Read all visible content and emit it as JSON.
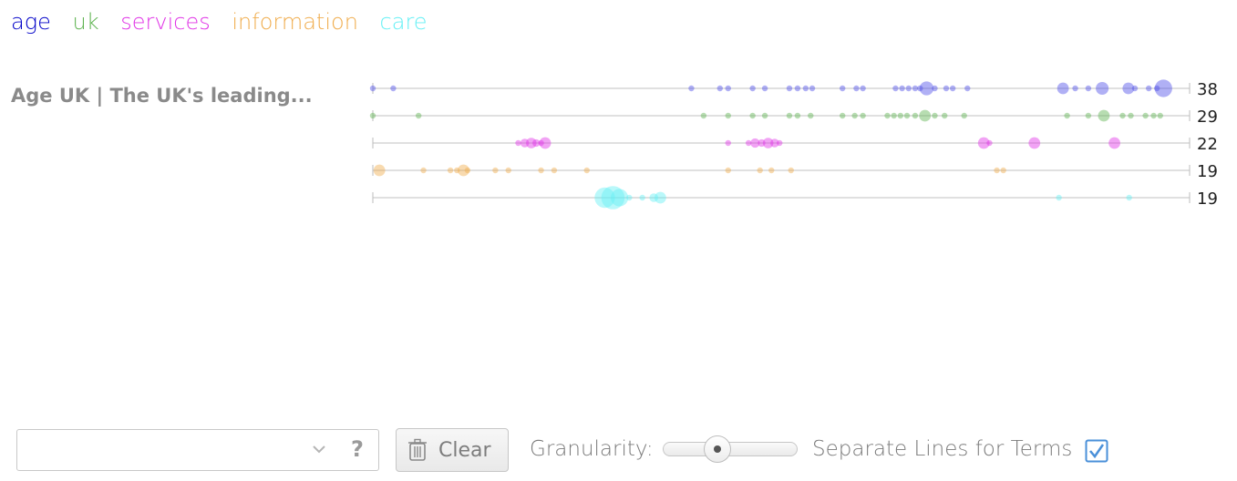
{
  "legend": {
    "terms": [
      {
        "label": "age",
        "color": "#0000c8"
      },
      {
        "label": "uk",
        "color": "#5fb451"
      },
      {
        "label": "services",
        "color": "#e033e6"
      },
      {
        "label": "information",
        "color": "#f0ad4e"
      },
      {
        "label": "care",
        "color": "#66f0f5"
      }
    ]
  },
  "document": {
    "title": "Age UK | The UK's leading..."
  },
  "chart_data": {
    "type": "scatter",
    "x_scale": "document position (0–100)",
    "series": [
      {
        "name": "age",
        "total": "38",
        "color": "#5050e8",
        "points": [
          [
            0,
            1
          ],
          [
            2.5,
            1
          ],
          [
            39,
            1
          ],
          [
            42.5,
            1
          ],
          [
            43.5,
            1
          ],
          [
            46.5,
            1
          ],
          [
            48,
            1
          ],
          [
            51,
            1
          ],
          [
            52,
            1
          ],
          [
            53,
            1
          ],
          [
            53.8,
            1
          ],
          [
            57.5,
            1
          ],
          [
            59.2,
            1
          ],
          [
            60,
            1
          ],
          [
            64,
            1
          ],
          [
            64.8,
            1
          ],
          [
            65.6,
            1
          ],
          [
            66.4,
            1
          ],
          [
            67,
            1
          ],
          [
            67.8,
            2.4
          ],
          [
            68.8,
            1
          ],
          [
            70.2,
            1
          ],
          [
            71,
            1
          ],
          [
            72.8,
            1
          ],
          [
            84.5,
            2
          ],
          [
            86,
            1
          ],
          [
            87.6,
            1
          ],
          [
            89.3,
            2.2
          ],
          [
            92.5,
            2
          ],
          [
            93.3,
            1
          ],
          [
            95,
            1
          ],
          [
            96,
            1
          ],
          [
            96.8,
            3
          ]
        ]
      },
      {
        "name": "uk",
        "total": "29",
        "color": "#5fb451",
        "points": [
          [
            0,
            1
          ],
          [
            5.6,
            1
          ],
          [
            40.5,
            1
          ],
          [
            43.5,
            1
          ],
          [
            46.5,
            1
          ],
          [
            48,
            1
          ],
          [
            51,
            1
          ],
          [
            52,
            1
          ],
          [
            53.6,
            1
          ],
          [
            57.5,
            1
          ],
          [
            59,
            1
          ],
          [
            60,
            1
          ],
          [
            63,
            1
          ],
          [
            63.8,
            1
          ],
          [
            64.6,
            1
          ],
          [
            65.4,
            1
          ],
          [
            66.4,
            1
          ],
          [
            67.6,
            2
          ],
          [
            68.8,
            1
          ],
          [
            70,
            1
          ],
          [
            72.4,
            1
          ],
          [
            85,
            1
          ],
          [
            87.6,
            1
          ],
          [
            89.5,
            2
          ],
          [
            91.8,
            1
          ],
          [
            92.8,
            1
          ],
          [
            94.6,
            1
          ],
          [
            95.6,
            1
          ],
          [
            96.4,
            1
          ]
        ]
      },
      {
        "name": "services",
        "total": "22",
        "color": "#e033e6",
        "points": [
          [
            17.8,
            1
          ],
          [
            18.6,
            1.5
          ],
          [
            19.4,
            1.8
          ],
          [
            20,
            1.3
          ],
          [
            20.6,
            1
          ],
          [
            21.1,
            2
          ],
          [
            43.5,
            1
          ],
          [
            46,
            1
          ],
          [
            46.8,
            1.6
          ],
          [
            47.6,
            1.3
          ],
          [
            48.4,
            1.8
          ],
          [
            49.2,
            1.5
          ],
          [
            49.8,
            1
          ],
          [
            74.8,
            2
          ],
          [
            75.5,
            1
          ],
          [
            81,
            2
          ],
          [
            90.8,
            2
          ]
        ]
      },
      {
        "name": "information",
        "total": "19",
        "color": "#f0ad4e",
        "points": [
          [
            0.8,
            2
          ],
          [
            6.2,
            1
          ],
          [
            9.5,
            1
          ],
          [
            10.3,
            1
          ],
          [
            11.1,
            2
          ],
          [
            11.6,
            1
          ],
          [
            15,
            1
          ],
          [
            16.6,
            1
          ],
          [
            20.6,
            1
          ],
          [
            22.2,
            1
          ],
          [
            26.2,
            1
          ],
          [
            43.5,
            1
          ],
          [
            47.4,
            1
          ],
          [
            48.8,
            1
          ],
          [
            51.2,
            1
          ],
          [
            76.4,
            1
          ],
          [
            77.2,
            1
          ]
        ]
      },
      {
        "name": "care",
        "total": "19",
        "color": "#66f0f5",
        "points": [
          [
            28.4,
            3.5
          ],
          [
            29.4,
            4
          ],
          [
            30.2,
            3
          ],
          [
            31.4,
            1
          ],
          [
            33,
            1
          ],
          [
            34.4,
            1.5
          ],
          [
            35.2,
            2
          ],
          [
            84,
            1
          ],
          [
            92.6,
            1
          ]
        ]
      }
    ]
  }
}
